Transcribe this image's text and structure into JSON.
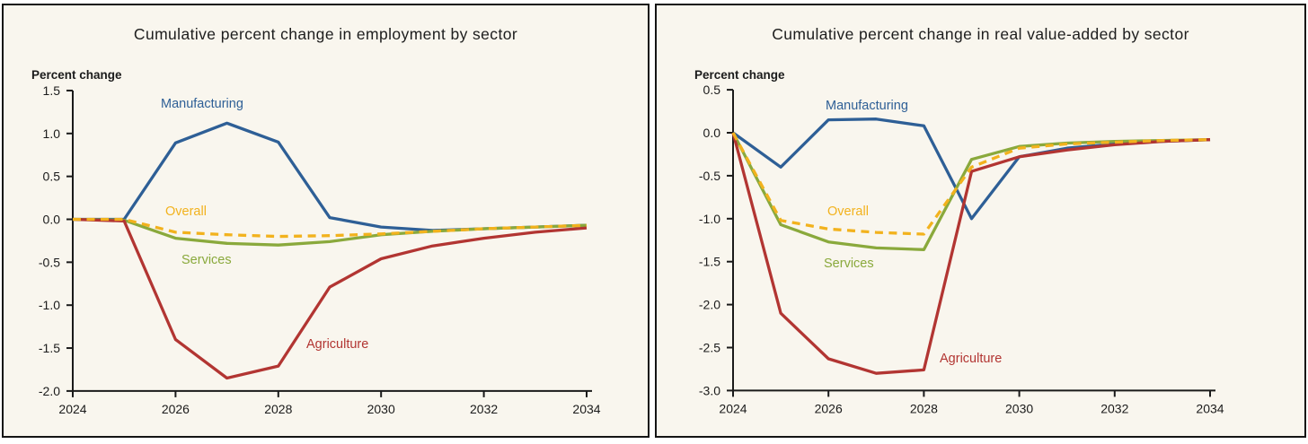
{
  "accent_colors": {
    "manufacturing": "#2e5f96",
    "overall": "#f2b21d",
    "services": "#8aa93c",
    "agriculture": "#b23532",
    "panel_background": "#f9f6ee",
    "panel_border": "#141414",
    "axis": "#1a1a1a"
  },
  "chart_data": [
    {
      "type": "line",
      "title": "Cumulative percent change in employment by sector",
      "ylabel": "Percent change",
      "xlabel": "",
      "x": [
        2024,
        2025,
        2026,
        2027,
        2028,
        2029,
        2030,
        2031,
        2032,
        2033,
        2034
      ],
      "x_tick_labels": [
        "2024",
        "2026",
        "2028",
        "2030",
        "2032",
        "2034"
      ],
      "x_tick_indices": [
        0,
        2,
        4,
        6,
        8,
        10
      ],
      "y_tick_labels": [
        "1.5",
        "1.0",
        "0.5",
        "0.0",
        "-0.5",
        "-1.0",
        "-1.5",
        "-2.0"
      ],
      "y_tick_values": [
        1.5,
        1.0,
        0.5,
        0.0,
        -0.5,
        -1.0,
        -1.5,
        -2.0
      ],
      "ylim": [
        -2.0,
        1.5
      ],
      "grid": "off",
      "legend_position": "inline-labels",
      "series": [
        {
          "name": "Manufacturing",
          "color": "#2e5f96",
          "dashed": false,
          "values": [
            0.0,
            0.0,
            0.89,
            1.12,
            0.9,
            0.02,
            -0.09,
            -0.13,
            -0.11,
            -0.09,
            -0.07
          ]
        },
        {
          "name": "Services",
          "color": "#8aa93c",
          "dashed": false,
          "values": [
            0.0,
            -0.01,
            -0.22,
            -0.28,
            -0.3,
            -0.26,
            -0.18,
            -0.14,
            -0.11,
            -0.09,
            -0.07
          ]
        },
        {
          "name": "Agriculture",
          "color": "#b23532",
          "dashed": false,
          "values": [
            0.0,
            -0.02,
            -1.4,
            -1.85,
            -1.71,
            -0.79,
            -0.46,
            -0.31,
            -0.22,
            -0.15,
            -0.1
          ]
        },
        {
          "name": "Overall",
          "color": "#f2b21d",
          "dashed": true,
          "values": [
            0.0,
            0.0,
            -0.15,
            -0.18,
            -0.2,
            -0.19,
            -0.17,
            -0.14,
            -0.11,
            -0.09,
            -0.07
          ]
        }
      ]
    },
    {
      "type": "line",
      "title": "Cumulative percent change in real value-added by sector",
      "ylabel": "Percent change",
      "xlabel": "",
      "x": [
        2024,
        2025,
        2026,
        2027,
        2028,
        2029,
        2030,
        2031,
        2032,
        2033,
        2034
      ],
      "x_tick_labels": [
        "2024",
        "2026",
        "2028",
        "2030",
        "2032",
        "2034"
      ],
      "x_tick_indices": [
        0,
        2,
        4,
        6,
        8,
        10
      ],
      "y_tick_labels": [
        "0.5",
        "0.0",
        "-0.5",
        "-1.0",
        "-1.5",
        "-2.0",
        "-2.5",
        "-3.0"
      ],
      "y_tick_values": [
        0.5,
        0.0,
        -0.5,
        -1.0,
        -1.5,
        -2.0,
        -2.5,
        -3.0
      ],
      "ylim": [
        -3.0,
        0.5
      ],
      "grid": "off",
      "legend_position": "inline-labels",
      "series": [
        {
          "name": "Manufacturing",
          "color": "#2e5f96",
          "dashed": false,
          "values": [
            0.0,
            -0.4,
            0.15,
            0.16,
            0.08,
            -1.0,
            -0.28,
            -0.18,
            -0.13,
            -0.1,
            -0.08
          ]
        },
        {
          "name": "Services",
          "color": "#8aa93c",
          "dashed": false,
          "values": [
            0.0,
            -1.07,
            -1.27,
            -1.34,
            -1.36,
            -0.31,
            -0.16,
            -0.12,
            -0.1,
            -0.09,
            -0.08
          ]
        },
        {
          "name": "Agriculture",
          "color": "#b23532",
          "dashed": false,
          "values": [
            0.0,
            -2.1,
            -2.63,
            -2.8,
            -2.76,
            -0.45,
            -0.28,
            -0.2,
            -0.14,
            -0.1,
            -0.08
          ]
        },
        {
          "name": "Overall",
          "color": "#f2b21d",
          "dashed": true,
          "values": [
            0.0,
            -1.02,
            -1.12,
            -1.16,
            -1.18,
            -0.4,
            -0.18,
            -0.13,
            -0.11,
            -0.09,
            -0.08
          ]
        }
      ]
    }
  ]
}
